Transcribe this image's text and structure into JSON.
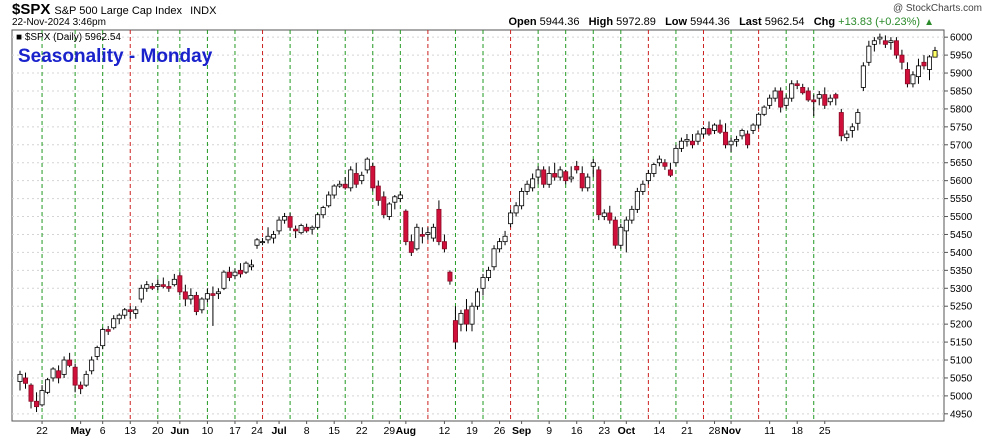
{
  "header": {
    "symbol": "$SPX",
    "name": "S&P 500 Large Cap Index",
    "exchange": "INDX",
    "date": "22-Nov-2024 3:46pm",
    "open_label": "Open",
    "open": "5944.36",
    "high_label": "High",
    "high": "5972.89",
    "low_label": "Low",
    "low": "5944.36",
    "last_label": "Last",
    "last": "5962.54",
    "chg_label": "Chg",
    "chg": "+13.83 (+0.23%)",
    "brand": "@ StockCharts.com"
  },
  "chart_data": {
    "type": "candlestick",
    "title": "Seasonality - Monday",
    "legend": "$SPX (Daily) 5962.54",
    "legend_placement": "top-left",
    "ylim": [
      4930,
      6020
    ],
    "yticks": [
      4950,
      5000,
      5050,
      5100,
      5150,
      5200,
      5250,
      5300,
      5350,
      5400,
      5450,
      5500,
      5550,
      5600,
      5650,
      5700,
      5750,
      5800,
      5850,
      5900,
      5950,
      6000
    ],
    "y_axis_side": "right",
    "grid": true,
    "x_labels": [
      {
        "i": 4,
        "label": "22",
        "bold": false
      },
      {
        "i": 11,
        "label": "May",
        "bold": true
      },
      {
        "i": 15,
        "label": "6",
        "bold": false
      },
      {
        "i": 20,
        "label": "13",
        "bold": false
      },
      {
        "i": 25,
        "label": "20",
        "bold": false
      },
      {
        "i": 29,
        "label": "Jun",
        "bold": true
      },
      {
        "i": 34,
        "label": "10",
        "bold": false
      },
      {
        "i": 39,
        "label": "17",
        "bold": false
      },
      {
        "i": 43,
        "label": "24",
        "bold": false
      },
      {
        "i": 47,
        "label": "Jul",
        "bold": true
      },
      {
        "i": 52,
        "label": "8",
        "bold": false
      },
      {
        "i": 57,
        "label": "15",
        "bold": false
      },
      {
        "i": 62,
        "label": "22",
        "bold": false
      },
      {
        "i": 67,
        "label": "29",
        "bold": false
      },
      {
        "i": 70,
        "label": "Aug",
        "bold": true
      },
      {
        "i": 77,
        "label": "12",
        "bold": false
      },
      {
        "i": 82,
        "label": "19",
        "bold": false
      },
      {
        "i": 87,
        "label": "26",
        "bold": false
      },
      {
        "i": 91,
        "label": "Sep",
        "bold": true
      },
      {
        "i": 96,
        "label": "9",
        "bold": false
      },
      {
        "i": 101,
        "label": "16",
        "bold": false
      },
      {
        "i": 106,
        "label": "23",
        "bold": false
      },
      {
        "i": 110,
        "label": "Oct",
        "bold": true
      },
      {
        "i": 116,
        "label": "14",
        "bold": false
      },
      {
        "i": 121,
        "label": "21",
        "bold": false
      },
      {
        "i": 126,
        "label": "28",
        "bold": false
      },
      {
        "i": 129,
        "label": "Nov",
        "bold": true
      },
      {
        "i": 136,
        "label": "11",
        "bold": false
      },
      {
        "i": 141,
        "label": "18",
        "bold": false
      },
      {
        "i": 146,
        "label": "25",
        "bold": false
      }
    ],
    "mondays": [
      {
        "i": 4,
        "down": false
      },
      {
        "i": 10,
        "down": false
      },
      {
        "i": 15,
        "down": false
      },
      {
        "i": 20,
        "down": true
      },
      {
        "i": 25,
        "down": false
      },
      {
        "i": 29,
        "down": false
      },
      {
        "i": 34,
        "down": false
      },
      {
        "i": 39,
        "down": false
      },
      {
        "i": 44,
        "down": true
      },
      {
        "i": 49,
        "down": false
      },
      {
        "i": 54,
        "down": false
      },
      {
        "i": 59,
        "down": false
      },
      {
        "i": 64,
        "down": false
      },
      {
        "i": 69,
        "down": false
      },
      {
        "i": 74,
        "down": true
      },
      {
        "i": 79,
        "down": false
      },
      {
        "i": 84,
        "down": false
      },
      {
        "i": 89,
        "down": true
      },
      {
        "i": 94,
        "down": false
      },
      {
        "i": 99,
        "down": false
      },
      {
        "i": 104,
        "down": false
      },
      {
        "i": 109,
        "down": false
      },
      {
        "i": 114,
        "down": true
      },
      {
        "i": 119,
        "down": false
      },
      {
        "i": 124,
        "down": true
      },
      {
        "i": 129,
        "down": false
      },
      {
        "i": 134,
        "down": true
      },
      {
        "i": 139,
        "down": false
      },
      {
        "i": 144,
        "down": false
      }
    ],
    "ohlc": [
      [
        5040,
        5070,
        5015,
        5060
      ],
      [
        5050,
        5065,
        5020,
        5035
      ],
      [
        5030,
        5035,
        4965,
        4985
      ],
      [
        4985,
        5010,
        4955,
        4970
      ],
      [
        4975,
        5030,
        4970,
        5015
      ],
      [
        5010,
        5050,
        5005,
        5045
      ],
      [
        5050,
        5080,
        5040,
        5075
      ],
      [
        5070,
        5085,
        5035,
        5050
      ],
      [
        5060,
        5110,
        5050,
        5100
      ],
      [
        5100,
        5120,
        5080,
        5085
      ],
      [
        5080,
        5090,
        5010,
        5030
      ],
      [
        5030,
        5040,
        5005,
        5020
      ],
      [
        5030,
        5070,
        5025,
        5060
      ],
      [
        5070,
        5110,
        5060,
        5100
      ],
      [
        5110,
        5140,
        5100,
        5135
      ],
      [
        5140,
        5190,
        5130,
        5185
      ],
      [
        5185,
        5195,
        5170,
        5180
      ],
      [
        5190,
        5225,
        5185,
        5215
      ],
      [
        5215,
        5230,
        5200,
        5225
      ],
      [
        5225,
        5245,
        5215,
        5240
      ],
      [
        5240,
        5250,
        5215,
        5235
      ],
      [
        5230,
        5250,
        5215,
        5240
      ],
      [
        5270,
        5310,
        5260,
        5300
      ],
      [
        5300,
        5320,
        5290,
        5310
      ],
      [
        5305,
        5315,
        5295,
        5300
      ],
      [
        5305,
        5325,
        5295,
        5310
      ],
      [
        5310,
        5330,
        5300,
        5305
      ],
      [
        5305,
        5320,
        5290,
        5300
      ],
      [
        5310,
        5340,
        5305,
        5325
      ],
      [
        5335,
        5345,
        5280,
        5290
      ],
      [
        5290,
        5310,
        5250,
        5270
      ],
      [
        5270,
        5300,
        5255,
        5280
      ],
      [
        5280,
        5290,
        5225,
        5235
      ],
      [
        5240,
        5275,
        5230,
        5270
      ],
      [
        5270,
        5300,
        5260,
        5285
      ],
      [
        5285,
        5305,
        5195,
        5280
      ],
      [
        5285,
        5300,
        5270,
        5290
      ],
      [
        5300,
        5350,
        5295,
        5345
      ],
      [
        5345,
        5360,
        5320,
        5330
      ],
      [
        5335,
        5355,
        5325,
        5345
      ],
      [
        5350,
        5370,
        5330,
        5340
      ],
      [
        5345,
        5375,
        5340,
        5370
      ],
      [
        5360,
        5380,
        5350,
        5365
      ],
      [
        5420,
        5440,
        5410,
        5435
      ],
      [
        5430,
        5440,
        5420,
        5430
      ],
      [
        5435,
        5470,
        5425,
        5445
      ],
      [
        5440,
        5460,
        5425,
        5450
      ],
      [
        5460,
        5500,
        5450,
        5490
      ],
      [
        5490,
        5510,
        5480,
        5500
      ],
      [
        5500,
        5510,
        5460,
        5470
      ],
      [
        5465,
        5475,
        5440,
        5460
      ],
      [
        5455,
        5480,
        5450,
        5475
      ],
      [
        5470,
        5480,
        5455,
        5460
      ],
      [
        5465,
        5475,
        5450,
        5470
      ],
      [
        5470,
        5510,
        5465,
        5505
      ],
      [
        5505,
        5530,
        5495,
        5525
      ],
      [
        5530,
        5570,
        5525,
        5560
      ],
      [
        5560,
        5590,
        5550,
        5585
      ],
      [
        5585,
        5600,
        5580,
        5590
      ],
      [
        5590,
        5610,
        5575,
        5580
      ],
      [
        5580,
        5640,
        5570,
        5630
      ],
      [
        5620,
        5650,
        5580,
        5590
      ],
      [
        5600,
        5625,
        5590,
        5615
      ],
      [
        5630,
        5665,
        5620,
        5660
      ],
      [
        5640,
        5650,
        5570,
        5580
      ],
      [
        5585,
        5600,
        5530,
        5545
      ],
      [
        5555,
        5570,
        5495,
        5505
      ],
      [
        5500,
        5540,
        5490,
        5535
      ],
      [
        5540,
        5560,
        5520,
        5555
      ],
      [
        5550,
        5570,
        5540,
        5560
      ],
      [
        5515,
        5520,
        5420,
        5430
      ],
      [
        5430,
        5450,
        5390,
        5400
      ],
      [
        5410,
        5480,
        5405,
        5470
      ],
      [
        5450,
        5470,
        5425,
        5445
      ],
      [
        5450,
        5470,
        5435,
        5455
      ],
      [
        5440,
        5480,
        5430,
        5470
      ],
      [
        5520,
        5545,
        5420,
        5430
      ],
      [
        5430,
        5450,
        5400,
        5410
      ],
      [
        5345,
        5350,
        5310,
        5320
      ],
      [
        5210,
        5250,
        5130,
        5150
      ],
      [
        5200,
        5240,
        5180,
        5230
      ],
      [
        5240,
        5270,
        5180,
        5200
      ],
      [
        5200,
        5260,
        5180,
        5250
      ],
      [
        5250,
        5300,
        5240,
        5290
      ],
      [
        5300,
        5340,
        5280,
        5330
      ],
      [
        5330,
        5360,
        5320,
        5350
      ],
      [
        5360,
        5420,
        5350,
        5410
      ],
      [
        5410,
        5440,
        5400,
        5430
      ],
      [
        5430,
        5460,
        5420,
        5445
      ],
      [
        5480,
        5520,
        5470,
        5510
      ],
      [
        5510,
        5540,
        5500,
        5530
      ],
      [
        5530,
        5580,
        5520,
        5570
      ],
      [
        5570,
        5600,
        5560,
        5590
      ],
      [
        5580,
        5620,
        5570,
        5605
      ],
      [
        5610,
        5640,
        5590,
        5630
      ],
      [
        5630,
        5640,
        5580,
        5590
      ],
      [
        5590,
        5640,
        5580,
        5620
      ],
      [
        5620,
        5650,
        5600,
        5610
      ],
      [
        5610,
        5640,
        5600,
        5630
      ],
      [
        5625,
        5630,
        5590,
        5600
      ],
      [
        5605,
        5640,
        5595,
        5610
      ],
      [
        5640,
        5655,
        5620,
        5630
      ],
      [
        5620,
        5640,
        5570,
        5580
      ],
      [
        5580,
        5620,
        5570,
        5610
      ],
      [
        5640,
        5660,
        5610,
        5650
      ],
      [
        5630,
        5640,
        5490,
        5505
      ],
      [
        5500,
        5520,
        5490,
        5510
      ],
      [
        5510,
        5530,
        5480,
        5490
      ],
      [
        5490,
        5500,
        5410,
        5420
      ],
      [
        5420,
        5480,
        5410,
        5470
      ],
      [
        5460,
        5500,
        5400,
        5490
      ],
      [
        5490,
        5530,
        5480,
        5520
      ],
      [
        5520,
        5580,
        5510,
        5570
      ],
      [
        5570,
        5600,
        5560,
        5590
      ],
      [
        5600,
        5630,
        5590,
        5620
      ],
      [
        5620,
        5650,
        5610,
        5645
      ],
      [
        5650,
        5670,
        5640,
        5660
      ],
      [
        5650,
        5660,
        5630,
        5640
      ],
      [
        5630,
        5650,
        5610,
        5615
      ],
      [
        5650,
        5700,
        5640,
        5690
      ],
      [
        5690,
        5720,
        5680,
        5710
      ],
      [
        5710,
        5730,
        5695,
        5715
      ],
      [
        5710,
        5730,
        5690,
        5700
      ],
      [
        5710,
        5740,
        5700,
        5730
      ],
      [
        5730,
        5750,
        5720,
        5745
      ],
      [
        5745,
        5765,
        5725,
        5730
      ],
      [
        5740,
        5760,
        5730,
        5755
      ],
      [
        5755,
        5770,
        5730,
        5735
      ],
      [
        5735,
        5760,
        5690,
        5700
      ],
      [
        5700,
        5720,
        5680,
        5710
      ],
      [
        5710,
        5725,
        5695,
        5715
      ],
      [
        5725,
        5745,
        5715,
        5740
      ],
      [
        5730,
        5740,
        5690,
        5700
      ],
      [
        5740,
        5760,
        5730,
        5755
      ],
      [
        5755,
        5790,
        5745,
        5785
      ],
      [
        5785,
        5810,
        5780,
        5805
      ],
      [
        5810,
        5840,
        5800,
        5830
      ],
      [
        5830,
        5860,
        5820,
        5850
      ],
      [
        5850,
        5860,
        5790,
        5805
      ],
      [
        5810,
        5840,
        5800,
        5830
      ],
      [
        5830,
        5880,
        5820,
        5870
      ],
      [
        5870,
        5880,
        5855,
        5865
      ],
      [
        5860,
        5870,
        5840,
        5845
      ],
      [
        5850,
        5860,
        5820,
        5825
      ],
      [
        5825,
        5840,
        5780,
        5820
      ],
      [
        5830,
        5850,
        5810,
        5840
      ],
      [
        5840,
        5860,
        5800,
        5810
      ],
      [
        5820,
        5840,
        5810,
        5830
      ],
      [
        5840,
        5845,
        5810,
        5830
      ],
      [
        5790,
        5800,
        5710,
        5725
      ],
      [
        5720,
        5740,
        5710,
        5730
      ],
      [
        5740,
        5760,
        5720,
        5750
      ],
      [
        5760,
        5800,
        5740,
        5790
      ],
      [
        5860,
        5930,
        5850,
        5920
      ],
      [
        5930,
        5990,
        5920,
        5975
      ],
      [
        5980,
        6000,
        5960,
        5990
      ],
      [
        5995,
        6010,
        5980,
        6000
      ],
      [
        5990,
        6005,
        5970,
        5980
      ],
      [
        5985,
        6000,
        5965,
        5990
      ],
      [
        5990,
        6000,
        5940,
        5950
      ],
      [
        5950,
        5965,
        5910,
        5930
      ],
      [
        5910,
        5930,
        5860,
        5870
      ],
      [
        5870,
        5905,
        5860,
        5895
      ],
      [
        5890,
        5940,
        5870,
        5920
      ],
      [
        5930,
        5950,
        5910,
        5920
      ],
      [
        5910,
        5950,
        5880,
        5945
      ],
      [
        5944.36,
        5972.89,
        5944.36,
        5962.54
      ]
    ]
  }
}
